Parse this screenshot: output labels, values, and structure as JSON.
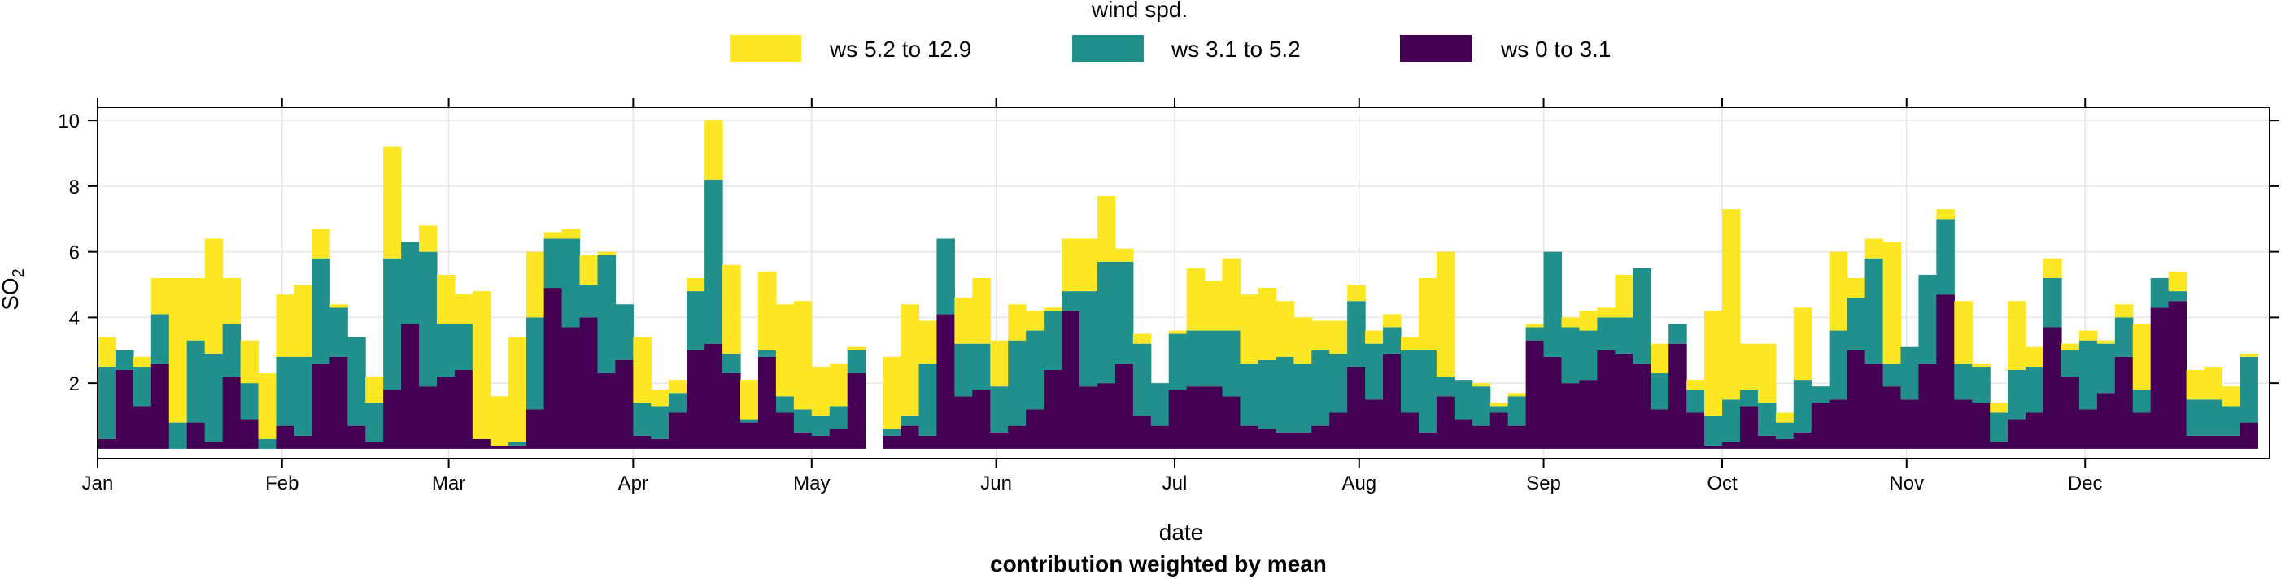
{
  "chart_data": {
    "type": "bar",
    "stacked": true,
    "legend": {
      "title": "wind spd.",
      "position": "top",
      "items": [
        {
          "label": "ws 5.2 to 12.9",
          "color": "#fde725"
        },
        {
          "label": "ws 3.1 to 5.2",
          "color": "#21908c"
        },
        {
          "label": "ws 0 to 3.1",
          "color": "#440154"
        }
      ]
    },
    "xlabel": "date",
    "ylabel": "SO",
    "ylabel_subscript": "2",
    "caption": "contribution weighted by mean",
    "ylim": [
      -0.3,
      10.4
    ],
    "yticks": [
      2,
      4,
      6,
      8,
      10
    ],
    "xlim": [
      0,
      365
    ],
    "xticks": [
      {
        "label": "Jan",
        "day": 0
      },
      {
        "label": "Feb",
        "day": 31
      },
      {
        "label": "Mar",
        "day": 59
      },
      {
        "label": "Apr",
        "day": 90
      },
      {
        "label": "May",
        "day": 120
      },
      {
        "label": "Jun",
        "day": 151
      },
      {
        "label": "Jul",
        "day": 181
      },
      {
        "label": "Aug",
        "day": 212
      },
      {
        "label": "Sep",
        "day": 243
      },
      {
        "label": "Oct",
        "day": 273
      },
      {
        "label": "Nov",
        "day": 304
      },
      {
        "label": "Dec",
        "day": 334
      }
    ],
    "grid": true,
    "bin_width_days": 3,
    "bin_start_days": [
      0,
      3,
      6,
      9,
      12,
      15,
      18,
      21,
      24,
      27,
      30,
      33,
      36,
      39,
      42,
      45,
      48,
      51,
      54,
      57,
      60,
      63,
      66,
      69,
      72,
      75,
      78,
      81,
      84,
      87,
      90,
      93,
      96,
      99,
      102,
      105,
      108,
      111,
      114,
      117,
      120,
      123,
      126,
      129,
      132,
      135,
      138,
      141,
      144,
      147,
      150,
      153,
      156,
      159,
      162,
      165,
      168,
      171,
      174,
      177,
      180,
      183,
      186,
      189,
      192,
      195,
      198,
      201,
      204,
      207,
      210,
      213,
      216,
      219,
      222,
      225,
      228,
      231,
      234,
      237,
      240,
      243,
      246,
      249,
      252,
      255,
      258,
      261,
      264,
      267,
      270,
      273,
      276,
      279,
      282,
      285,
      288,
      291,
      294,
      297,
      300,
      303,
      306,
      309,
      312,
      315,
      318,
      321,
      324,
      327,
      330,
      333,
      336,
      339,
      342,
      345,
      348,
      351,
      354,
      357,
      360,
      363
    ],
    "series": [
      {
        "name": "ws 0 to 3.1",
        "values": [
          0.3,
          2.4,
          1.3,
          2.6,
          0,
          0.8,
          0.2,
          2.2,
          0.9,
          0,
          0.7,
          0.4,
          2.6,
          2.8,
          0.7,
          0.2,
          1.8,
          3.8,
          1.9,
          2.2,
          2.4,
          0.3,
          0.1,
          0.1,
          1.2,
          4.9,
          3.7,
          4.0,
          2.3,
          2.7,
          0.4,
          0.3,
          1.1,
          3.0,
          3.2,
          2.3,
          0.8,
          2.8,
          1.1,
          0.5,
          0.4,
          0.6,
          2.3,
          0,
          0.4,
          0.7,
          0.4,
          4.1,
          1.6,
          1.8,
          0.5,
          0.7,
          1.2,
          2.4,
          4.2,
          1.9,
          2.0,
          2.6,
          1.0,
          0.7,
          1.8,
          1.9,
          1.9,
          1.6,
          0.7,
          0.6,
          0.5,
          0.5,
          0.7,
          1.1,
          2.5,
          1.5,
          2.9,
          1.1,
          0.5,
          1.6,
          0.9,
          0.7,
          1.1,
          0.7,
          3.3,
          2.8,
          2.0,
          2.1,
          3.0,
          2.9,
          2.6,
          1.2,
          3.2,
          1.1,
          0.1,
          0.2,
          1.3,
          0.4,
          0.3,
          0.5,
          1.4,
          1.5,
          3.0,
          2.6,
          1.9,
          1.5,
          2.6,
          4.7,
          1.5,
          1.4,
          0.2,
          0.9,
          1.1,
          3.7,
          2.2,
          1.2,
          1.7,
          2.8,
          1.1,
          4.3,
          4.5,
          0.4,
          0.4,
          0.4,
          0.8
        ]
      },
      {
        "name": "ws 3.1 to 5.2",
        "values": [
          2.2,
          0.6,
          1.2,
          1.5,
          0.8,
          2.5,
          2.7,
          1.6,
          1.1,
          0.3,
          2.1,
          2.4,
          3.2,
          1.5,
          2.7,
          1.2,
          4.0,
          2.5,
          4.1,
          1.6,
          1.4,
          0,
          0,
          0.1,
          2.8,
          1.5,
          2.7,
          1.0,
          3.6,
          1.7,
          1.0,
          1.0,
          0.6,
          1.8,
          5.0,
          0.6,
          0.1,
          0.2,
          0.5,
          0.7,
          0.6,
          0.7,
          0.7,
          0,
          0.2,
          0.3,
          2.2,
          2.3,
          1.6,
          1.4,
          1.4,
          2.6,
          2.4,
          1.8,
          0.6,
          2.9,
          3.7,
          3.1,
          2.2,
          1.3,
          1.7,
          1.7,
          1.7,
          2.0,
          1.9,
          2.1,
          2.3,
          2.1,
          2.3,
          1.8,
          2.0,
          1.7,
          0.8,
          1.9,
          2.5,
          0.6,
          1.2,
          1.2,
          0.2,
          0.9,
          0.4,
          3.2,
          1.7,
          1.5,
          1.0,
          1.1,
          2.9,
          1.1,
          0.6,
          0.7,
          0.9,
          1.3,
          0.5,
          1.0,
          0.5,
          1.6,
          0.5,
          2.1,
          1.6,
          3.2,
          0.7,
          1.6,
          2.7,
          2.3,
          1.1,
          1.1,
          0.9,
          1.5,
          1.4,
          1.5,
          0.8,
          2.1,
          1.5,
          1.2,
          0.7,
          0.9,
          0.3,
          1.1,
          1.1,
          0.9,
          2.0
        ]
      },
      {
        "name": "ws 5.2 to 12.9",
        "values": [
          0.9,
          0,
          0.3,
          1.1,
          4.4,
          1.9,
          3.5,
          1.4,
          1.3,
          2.0,
          1.9,
          2.2,
          0.9,
          0.1,
          0,
          0.8,
          3.4,
          0,
          0.8,
          1.5,
          0.9,
          4.5,
          1.5,
          3.2,
          2.0,
          0.2,
          0.3,
          0.9,
          0.1,
          0,
          2.0,
          0.5,
          0.4,
          0.4,
          1.8,
          2.7,
          1.2,
          2.4,
          2.8,
          3.3,
          1.5,
          1.3,
          0.1,
          0,
          2.2,
          3.4,
          1.3,
          0,
          1.4,
          2.0,
          1.4,
          1.1,
          0.6,
          0.1,
          1.6,
          1.6,
          2.0,
          0.4,
          0.3,
          0,
          0.1,
          1.9,
          1.5,
          2.2,
          2.1,
          2.2,
          1.7,
          1.4,
          0.9,
          1.0,
          0.5,
          0.4,
          0.4,
          0.4,
          2.2,
          3.8,
          0,
          0.1,
          0.1,
          0.1,
          0.1,
          0,
          0.3,
          0.6,
          0.3,
          1.3,
          0,
          0.9,
          0,
          0.3,
          3.2,
          5.8,
          1.4,
          1.8,
          0.3,
          2.2,
          0,
          2.4,
          0.6,
          0.6,
          3.7,
          0,
          0,
          0.3,
          1.9,
          0.1,
          0.3,
          2.1,
          0.6,
          0.6,
          0.2,
          0.3,
          0.1,
          0.4,
          2.0,
          0,
          0.6,
          0.9,
          1.0,
          0.6,
          0.1
        ]
      }
    ]
  }
}
